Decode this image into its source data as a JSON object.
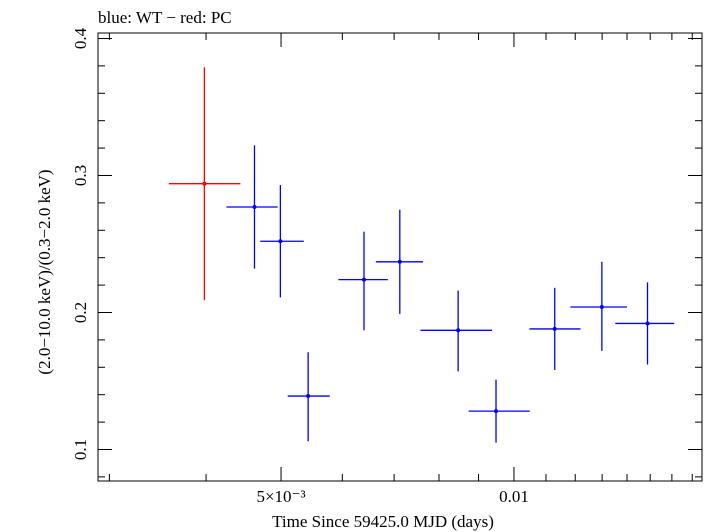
{
  "chart_data": {
    "type": "scatter",
    "title": "blue: WT − red: PC",
    "xlabel": "Time Since 59425.0 MJD (days)",
    "ylabel": "(2.0−10.0 keV)/(0.3−2.0 keV)",
    "xscale": "log",
    "xlim": [
      0.0029,
      0.0175
    ],
    "ylim": [
      0.077,
      0.404
    ],
    "grid": false,
    "yticks": [
      {
        "value": 0.1,
        "label": "0.1"
      },
      {
        "value": 0.2,
        "label": "0.2"
      },
      {
        "value": 0.3,
        "label": "0.3"
      },
      {
        "value": 0.4,
        "label": "0.4"
      }
    ],
    "xticks": [
      {
        "value": 0.005,
        "label": "5×10⁻³"
      },
      {
        "value": 0.01,
        "label": "0.01"
      }
    ],
    "series": [
      {
        "name": "PC",
        "color": "#ff0000",
        "points": [
          {
            "x": 0.00398,
            "xlo": 0.00358,
            "xhi": 0.00443,
            "y": 0.294,
            "ylo": 0.209,
            "yhi": 0.379
          }
        ]
      },
      {
        "name": "WT",
        "color": "#0000ff",
        "points": [
          {
            "x": 0.00462,
            "xlo": 0.00425,
            "xhi": 0.00495,
            "y": 0.277,
            "ylo": 0.232,
            "yhi": 0.322
          },
          {
            "x": 0.00499,
            "xlo": 0.0047,
            "xhi": 0.00535,
            "y": 0.252,
            "ylo": 0.211,
            "yhi": 0.293
          },
          {
            "x": 0.00542,
            "xlo": 0.0051,
            "xhi": 0.00578,
            "y": 0.139,
            "ylo": 0.106,
            "yhi": 0.171
          },
          {
            "x": 0.0064,
            "xlo": 0.00593,
            "xhi": 0.00687,
            "y": 0.224,
            "ylo": 0.187,
            "yhi": 0.259
          },
          {
            "x": 0.00712,
            "xlo": 0.00663,
            "xhi": 0.00763,
            "y": 0.237,
            "ylo": 0.199,
            "yhi": 0.275
          },
          {
            "x": 0.00847,
            "xlo": 0.00757,
            "xhi": 0.00937,
            "y": 0.187,
            "ylo": 0.157,
            "yhi": 0.216
          },
          {
            "x": 0.00948,
            "xlo": 0.00874,
            "xhi": 0.01048,
            "y": 0.128,
            "ylo": 0.105,
            "yhi": 0.151
          },
          {
            "x": 0.01129,
            "xlo": 0.01047,
            "xhi": 0.01219,
            "y": 0.188,
            "ylo": 0.158,
            "yhi": 0.218
          },
          {
            "x": 0.01299,
            "xlo": 0.01183,
            "xhi": 0.014,
            "y": 0.204,
            "ylo": 0.172,
            "yhi": 0.237
          },
          {
            "x": 0.01488,
            "xlo": 0.01352,
            "xhi": 0.01611,
            "y": 0.192,
            "ylo": 0.162,
            "yhi": 0.222
          }
        ]
      }
    ]
  }
}
